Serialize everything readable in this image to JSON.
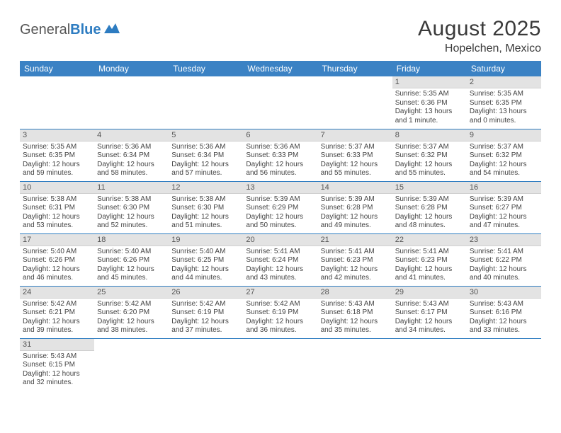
{
  "logo": {
    "text1": "General",
    "text2": "Blue"
  },
  "title": "August 2025",
  "location": "Hopelchen, Mexico",
  "colors": {
    "header_bg": "#3b82c4",
    "header_text": "#ffffff",
    "daynum_bg": "#e3e3e3",
    "rule": "#2d7cc1",
    "body_text": "#444444"
  },
  "weekdays": [
    "Sunday",
    "Monday",
    "Tuesday",
    "Wednesday",
    "Thursday",
    "Friday",
    "Saturday"
  ],
  "weeks": [
    [
      {
        "empty": true
      },
      {
        "empty": true
      },
      {
        "empty": true
      },
      {
        "empty": true
      },
      {
        "empty": true
      },
      {
        "day": "1",
        "sunrise": "5:35 AM",
        "sunset": "6:36 PM",
        "daylight": "13 hours and 1 minute."
      },
      {
        "day": "2",
        "sunrise": "5:35 AM",
        "sunset": "6:35 PM",
        "daylight": "13 hours and 0 minutes."
      }
    ],
    [
      {
        "day": "3",
        "sunrise": "5:35 AM",
        "sunset": "6:35 PM",
        "daylight": "12 hours and 59 minutes."
      },
      {
        "day": "4",
        "sunrise": "5:36 AM",
        "sunset": "6:34 PM",
        "daylight": "12 hours and 58 minutes."
      },
      {
        "day": "5",
        "sunrise": "5:36 AM",
        "sunset": "6:34 PM",
        "daylight": "12 hours and 57 minutes."
      },
      {
        "day": "6",
        "sunrise": "5:36 AM",
        "sunset": "6:33 PM",
        "daylight": "12 hours and 56 minutes."
      },
      {
        "day": "7",
        "sunrise": "5:37 AM",
        "sunset": "6:33 PM",
        "daylight": "12 hours and 55 minutes."
      },
      {
        "day": "8",
        "sunrise": "5:37 AM",
        "sunset": "6:32 PM",
        "daylight": "12 hours and 55 minutes."
      },
      {
        "day": "9",
        "sunrise": "5:37 AM",
        "sunset": "6:32 PM",
        "daylight": "12 hours and 54 minutes."
      }
    ],
    [
      {
        "day": "10",
        "sunrise": "5:38 AM",
        "sunset": "6:31 PM",
        "daylight": "12 hours and 53 minutes."
      },
      {
        "day": "11",
        "sunrise": "5:38 AM",
        "sunset": "6:30 PM",
        "daylight": "12 hours and 52 minutes."
      },
      {
        "day": "12",
        "sunrise": "5:38 AM",
        "sunset": "6:30 PM",
        "daylight": "12 hours and 51 minutes."
      },
      {
        "day": "13",
        "sunrise": "5:39 AM",
        "sunset": "6:29 PM",
        "daylight": "12 hours and 50 minutes."
      },
      {
        "day": "14",
        "sunrise": "5:39 AM",
        "sunset": "6:28 PM",
        "daylight": "12 hours and 49 minutes."
      },
      {
        "day": "15",
        "sunrise": "5:39 AM",
        "sunset": "6:28 PM",
        "daylight": "12 hours and 48 minutes."
      },
      {
        "day": "16",
        "sunrise": "5:39 AM",
        "sunset": "6:27 PM",
        "daylight": "12 hours and 47 minutes."
      }
    ],
    [
      {
        "day": "17",
        "sunrise": "5:40 AM",
        "sunset": "6:26 PM",
        "daylight": "12 hours and 46 minutes."
      },
      {
        "day": "18",
        "sunrise": "5:40 AM",
        "sunset": "6:26 PM",
        "daylight": "12 hours and 45 minutes."
      },
      {
        "day": "19",
        "sunrise": "5:40 AM",
        "sunset": "6:25 PM",
        "daylight": "12 hours and 44 minutes."
      },
      {
        "day": "20",
        "sunrise": "5:41 AM",
        "sunset": "6:24 PM",
        "daylight": "12 hours and 43 minutes."
      },
      {
        "day": "21",
        "sunrise": "5:41 AM",
        "sunset": "6:23 PM",
        "daylight": "12 hours and 42 minutes."
      },
      {
        "day": "22",
        "sunrise": "5:41 AM",
        "sunset": "6:23 PM",
        "daylight": "12 hours and 41 minutes."
      },
      {
        "day": "23",
        "sunrise": "5:41 AM",
        "sunset": "6:22 PM",
        "daylight": "12 hours and 40 minutes."
      }
    ],
    [
      {
        "day": "24",
        "sunrise": "5:42 AM",
        "sunset": "6:21 PM",
        "daylight": "12 hours and 39 minutes."
      },
      {
        "day": "25",
        "sunrise": "5:42 AM",
        "sunset": "6:20 PM",
        "daylight": "12 hours and 38 minutes."
      },
      {
        "day": "26",
        "sunrise": "5:42 AM",
        "sunset": "6:19 PM",
        "daylight": "12 hours and 37 minutes."
      },
      {
        "day": "27",
        "sunrise": "5:42 AM",
        "sunset": "6:19 PM",
        "daylight": "12 hours and 36 minutes."
      },
      {
        "day": "28",
        "sunrise": "5:43 AM",
        "sunset": "6:18 PM",
        "daylight": "12 hours and 35 minutes."
      },
      {
        "day": "29",
        "sunrise": "5:43 AM",
        "sunset": "6:17 PM",
        "daylight": "12 hours and 34 minutes."
      },
      {
        "day": "30",
        "sunrise": "5:43 AM",
        "sunset": "6:16 PM",
        "daylight": "12 hours and 33 minutes."
      }
    ],
    [
      {
        "day": "31",
        "sunrise": "5:43 AM",
        "sunset": "6:15 PM",
        "daylight": "12 hours and 32 minutes."
      },
      {
        "empty": true
      },
      {
        "empty": true
      },
      {
        "empty": true
      },
      {
        "empty": true
      },
      {
        "empty": true
      },
      {
        "empty": true
      }
    ]
  ],
  "labels": {
    "sunrise": "Sunrise: ",
    "sunset": "Sunset: ",
    "daylight": "Daylight: "
  }
}
